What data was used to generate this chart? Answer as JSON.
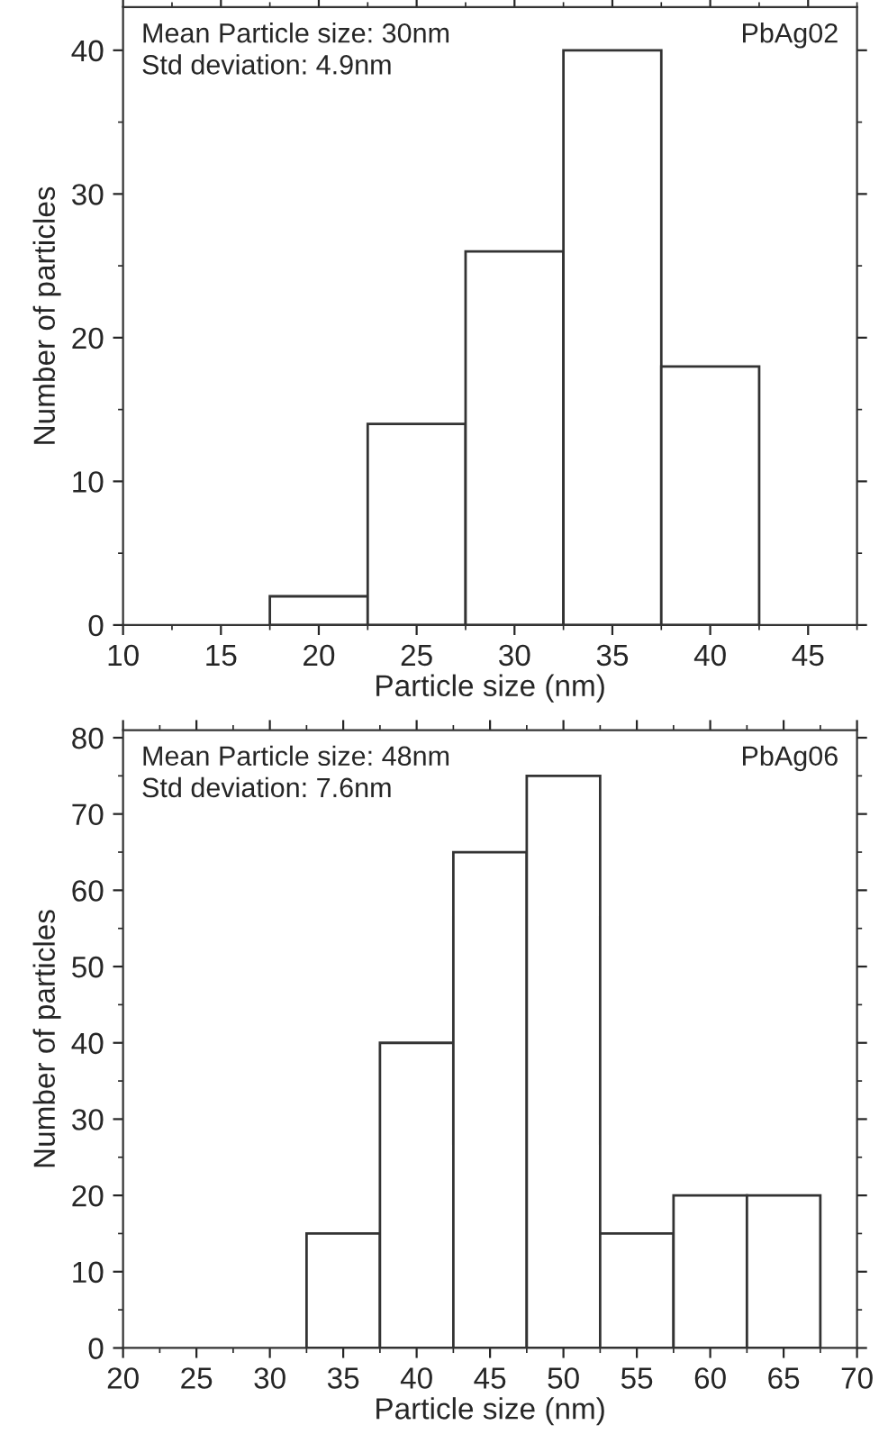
{
  "chart_data": [
    {
      "type": "histogram",
      "xlabel": "Particle size (nm)",
      "ylabel": "Number of particles",
      "annotations": [
        "Mean Particle size: 30nm\nStd deviation: 4.9nm",
        "PbAg02"
      ],
      "bins": [
        17.5,
        22.5,
        27.5,
        32.5,
        37.5,
        42.5
      ],
      "values": [
        2,
        14,
        26,
        40,
        18
      ],
      "color": "#ffffff",
      "xlim": [
        10,
        47.5
      ],
      "xticks": [
        10,
        15,
        20,
        25,
        30,
        35,
        40,
        45
      ],
      "ylim": [
        0,
        43
      ],
      "yticks": [
        0,
        10,
        20,
        30,
        40
      ],
      "grid": false,
      "legend": false
    },
    {
      "type": "histogram",
      "xlabel": "Particle size (nm)",
      "ylabel": "Number of particles",
      "annotations": [
        "Mean Particle size: 48nm\nStd deviation: 7.6nm",
        "PbAg06"
      ],
      "bins": [
        32.5,
        37.5,
        42.5,
        47.5,
        52.5,
        57.5,
        62.5,
        67.5
      ],
      "values": [
        15,
        40,
        65,
        75,
        15,
        20,
        20
      ],
      "color": "#ffffff",
      "xlim": [
        20,
        70
      ],
      "xticks": [
        20,
        25,
        30,
        35,
        40,
        45,
        50,
        55,
        60,
        65,
        70
      ],
      "ylim": [
        0,
        81
      ],
      "yticks": [
        0,
        10,
        20,
        30,
        40,
        50,
        60,
        70,
        80
      ],
      "grid": false,
      "legend": false
    }
  ]
}
